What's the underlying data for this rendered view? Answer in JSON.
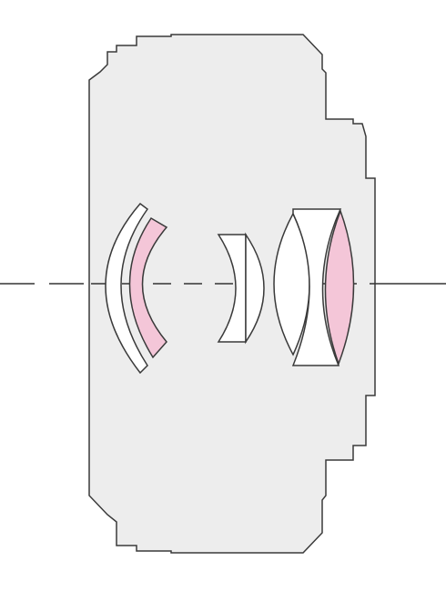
{
  "diagram": {
    "kind": "lens-element-cross-section",
    "colors": {
      "background": "#ffffff",
      "barrel_fill": "#ededed",
      "barrel_stroke": "#3a3a3a",
      "lens_fill": "#ffffff",
      "special_lens_fill": "#f4c6d8",
      "axis_stroke": "#333333"
    },
    "element_count": 7,
    "highlighted_element_count": 2
  }
}
